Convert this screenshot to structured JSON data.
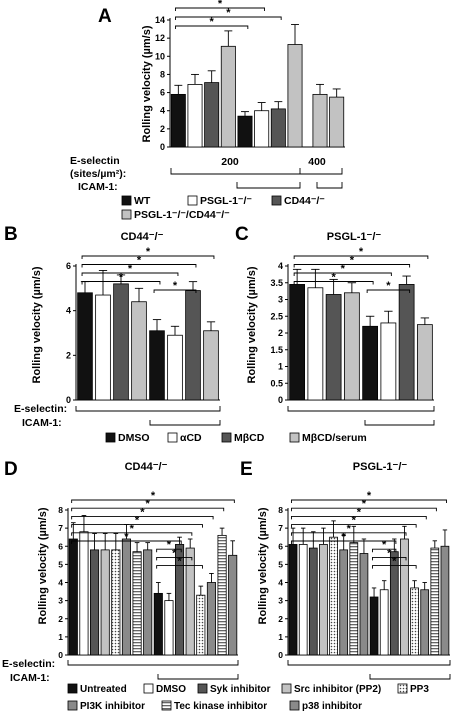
{
  "colors": {
    "black": "#111111",
    "white": "#ffffff",
    "darkgray": "#555555",
    "lightgray": "#c2c2c2",
    "medgray": "#8a8a8a",
    "stroke": "#000000"
  },
  "chart_data": [
    {
      "panel": "A",
      "type": "bar",
      "ylabel": "Rolling velocity (µm/s)",
      "ylim": [
        0,
        14
      ],
      "yticks": [
        "0",
        "2",
        "4",
        "6",
        "8",
        "10",
        "12",
        "14"
      ],
      "fills": [
        "black",
        "white",
        "darkgray",
        "lightgray",
        "black",
        "white",
        "darkgray",
        "lightgray",
        "lightgray",
        "lightgray"
      ],
      "values": [
        5.8,
        6.9,
        7.1,
        11.1,
        3.4,
        4.0,
        4.2,
        11.3,
        5.8,
        5.5
      ],
      "errors": [
        1.0,
        1.1,
        1.3,
        1.7,
        0.5,
        0.9,
        0.8,
        2.2,
        1.1,
        0.9
      ],
      "significance": [
        [
          0,
          5
        ],
        [
          0,
          6
        ],
        [
          0,
          4
        ]
      ],
      "cond_rows": [
        {
          "label": "E-selectin",
          "label2": "(sites/µm²):",
          "value_labels": [
            "200",
            "400"
          ]
        },
        {
          "label": "ICAM-1:"
        }
      ],
      "legend": [
        {
          "fill": "black",
          "name": "WT"
        },
        {
          "fill": "white",
          "name": "PSGL-1⁻/⁻"
        },
        {
          "fill": "darkgray",
          "name": "CD44⁻/⁻"
        },
        {
          "fill": "lightgray",
          "name": "PSGL-1⁻/⁻/CD44⁻/⁻"
        }
      ]
    },
    {
      "panel": "B",
      "type": "bar",
      "title": "CD44⁻/⁻",
      "ylabel": "Rolling velocity (µm/s)",
      "ylim": [
        0,
        6
      ],
      "yticks": [
        "0",
        "2",
        "4",
        "6"
      ],
      "fills": [
        "black",
        "white",
        "darkgray",
        "lightgray",
        "black",
        "white",
        "darkgray",
        "lightgray"
      ],
      "values": [
        4.8,
        4.7,
        5.2,
        4.4,
        3.1,
        2.9,
        4.9,
        3.1
      ],
      "errors": [
        0.5,
        1.1,
        0.4,
        0.6,
        0.5,
        0.4,
        0.4,
        0.4
      ],
      "significance": [
        [
          0,
          7
        ],
        [
          0,
          6
        ],
        [
          0,
          5
        ],
        [
          0,
          4
        ],
        [
          4,
          6
        ]
      ]
    },
    {
      "panel": "C",
      "type": "bar",
      "title": "PSGL-1⁻/⁻",
      "ylabel": "Rolling velocity (µm/s)",
      "ylim": [
        0,
        4
      ],
      "yticks": [
        "0",
        "0.5",
        "1",
        "1.5",
        "2",
        "2.5",
        "3",
        "3.5",
        "4"
      ],
      "fills": [
        "black",
        "white",
        "darkgray",
        "lightgray",
        "black",
        "white",
        "darkgray",
        "lightgray"
      ],
      "values": [
        3.45,
        3.35,
        3.15,
        3.2,
        2.2,
        2.3,
        3.45,
        2.25
      ],
      "errors": [
        0.45,
        0.55,
        0.45,
        0.3,
        0.3,
        0.35,
        0.25,
        0.2
      ],
      "significance": [
        [
          0,
          7
        ],
        [
          0,
          6
        ],
        [
          0,
          5
        ],
        [
          0,
          4
        ],
        [
          4,
          6
        ]
      ],
      "cond_rows": [
        {
          "label": "E-selectin:"
        },
        {
          "label": "ICAM-1:"
        }
      ],
      "legend": [
        {
          "fill": "black",
          "name": "DMSO"
        },
        {
          "fill": "white",
          "name": "αCD"
        },
        {
          "fill": "darkgray",
          "name": "MβCD"
        },
        {
          "fill": "lightgray",
          "name": "MβCD/serum"
        }
      ]
    },
    {
      "panel": "D",
      "type": "bar",
      "title": "CD44⁻/⁻",
      "ylabel": "Rolling velocity (µm/s)",
      "ylim": [
        0,
        8
      ],
      "yticks": [
        "0",
        "1",
        "2",
        "3",
        "4",
        "5",
        "6",
        "7",
        "8"
      ],
      "fills": [
        "black",
        "white",
        "darkgray",
        "lightgray",
        "dots",
        "medgray",
        "stripes",
        "gray",
        "black",
        "white",
        "darkgray",
        "lightgray",
        "dots",
        "medgray",
        "stripes",
        "gray"
      ],
      "values": [
        6.4,
        6.8,
        5.8,
        5.8,
        5.8,
        6.4,
        5.7,
        5.8,
        3.4,
        3.0,
        6.1,
        5.9,
        3.3,
        4.0,
        6.6,
        5.5
      ],
      "errors": [
        0.9,
        0.9,
        0.9,
        0.9,
        0.9,
        0.8,
        0.5,
        0.4,
        0.6,
        0.4,
        0.4,
        0.5,
        0.5,
        0.5,
        0.4,
        0.8
      ],
      "significance": [
        [
          0,
          15
        ],
        [
          0,
          14
        ],
        [
          0,
          13
        ],
        [
          0,
          12
        ],
        [
          0,
          11
        ],
        [
          0,
          10
        ],
        [
          8,
          10
        ],
        [
          8,
          11
        ],
        [
          8,
          12
        ]
      ]
    },
    {
      "panel": "E",
      "type": "bar",
      "title": "PSGL-1⁻/⁻",
      "ylabel": "Rolling velocity (µm/s)",
      "ylim": [
        0,
        8
      ],
      "yticks": [
        "0",
        "1",
        "2",
        "3",
        "4",
        "5",
        "6",
        "7",
        "8"
      ],
      "fills": [
        "black",
        "white",
        "darkgray",
        "lightgray",
        "dots",
        "medgray",
        "stripes",
        "gray",
        "black",
        "white",
        "darkgray",
        "lightgray",
        "dots",
        "medgray",
        "stripes",
        "gray"
      ],
      "values": [
        6.1,
        6.1,
        5.9,
        6.1,
        6.5,
        5.8,
        6.2,
        5.6,
        3.2,
        3.6,
        5.7,
        6.4,
        3.7,
        3.6,
        5.9,
        6.0
      ],
      "errors": [
        0.9,
        0.9,
        0.9,
        0.9,
        0.9,
        0.8,
        0.9,
        0.8,
        0.5,
        0.5,
        0.7,
        0.7,
        0.4,
        0.4,
        0.4,
        0.9
      ],
      "significance": [
        [
          0,
          15
        ],
        [
          0,
          14
        ],
        [
          0,
          13
        ],
        [
          0,
          12
        ],
        [
          0,
          11
        ],
        [
          0,
          10
        ],
        [
          8,
          10
        ],
        [
          8,
          11
        ],
        [
          8,
          12
        ]
      ],
      "cond_rows": [
        {
          "label": "E-selectin:"
        },
        {
          "label": "ICAM-1:"
        }
      ],
      "legend": [
        {
          "fill": "black",
          "name": "Untreated"
        },
        {
          "fill": "white",
          "name": "DMSO"
        },
        {
          "fill": "darkgray",
          "name": "Syk inhibitor"
        },
        {
          "fill": "lightgray",
          "name": "Src inhibitor (PP2)"
        },
        {
          "fill": "dots",
          "name": "PP3"
        },
        {
          "fill": "medgray",
          "name": "PI3K inhibitor"
        },
        {
          "fill": "stripes",
          "name": "Tec kinase inhibitor"
        },
        {
          "fill": "gray",
          "name": "p38 inhibitor"
        }
      ]
    }
  ],
  "sig_mark": "*"
}
